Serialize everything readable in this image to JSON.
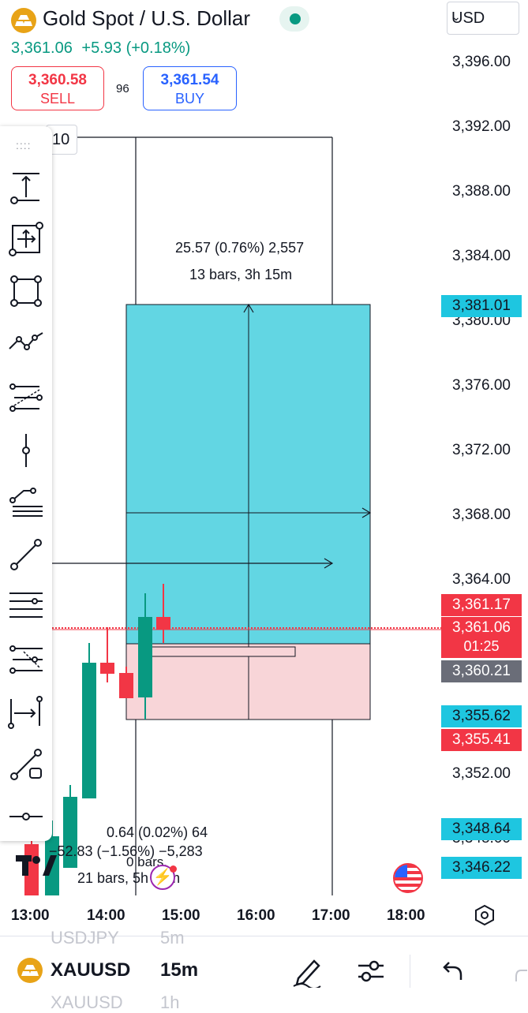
{
  "header": {
    "title": "Gold Spot / U.S. Dollar",
    "currency": "USD",
    "price": "3,361.06",
    "change": "+5.93 (+0.18%)",
    "sell_price": "3,360.58",
    "sell_label": "SELL",
    "spread": "96",
    "buy_price": "3,361.54",
    "buy_label": "BUY"
  },
  "toolbar": {
    "label": "10",
    "drag_handle": "::::",
    "tools": [
      "price-range-icon",
      "date-price-range-icon",
      "rectangle-icon",
      "path-icon",
      "fib-retracement-icon",
      "vertical-line-icon",
      "pitchfork-icon",
      "trend-line-icon",
      "horizontal-lines-icon",
      "fib-channel-icon",
      "date-range-icon",
      "arrow-marker-icon",
      "horizontal-ray-icon"
    ]
  },
  "colors": {
    "green": "#089981",
    "red": "#f23645",
    "cyan_zone": "#62d6e3",
    "pink_zone": "#f8d5d8",
    "tag_cyan": "#1ec6e0",
    "tag_red": "#f23645",
    "tag_gray": "#6a6d78"
  },
  "price_axis": [
    "3,396.00",
    "3,392.00",
    "3,388.00",
    "3,384.00",
    "3,380.00",
    "3,376.00",
    "3,372.00",
    "3,368.00",
    "3,364.00",
    "3,352.00",
    "3,348.00"
  ],
  "time_axis": [
    "13:00",
    "14:00",
    "15:00",
    "16:00",
    "17:00",
    "18:00"
  ],
  "tags": {
    "target": "3,381.01",
    "red_top": "3,361.17",
    "last_price": "3,361.06",
    "countdown": "01:25",
    "gray": "3,360.21",
    "cyan_mid": "3,355.62",
    "red_mid": "3,355.41",
    "cyan_low1": "3,348.64",
    "cyan_low2": "3,346.22"
  },
  "measure": {
    "top_line1": "25.57 (0.76%) 2,557",
    "top_line2": "13 bars, 3h 15m",
    "bottom_line1": "0.64 (0.02%) 64",
    "bottom_line2": "−52.83 (−1.56%) −5,283",
    "bottom_line3": "0 bars,",
    "bottom_line4": "21 bars, 5h 15m"
  },
  "bottom_bar": {
    "symbol": "XAUUSD",
    "interval": "15m",
    "ghost_prev_symbol": "USDJPY",
    "ghost_prev_interval": "5m",
    "ghost_next_symbol": "XAUUSD",
    "ghost_next_interval": "1h"
  }
}
